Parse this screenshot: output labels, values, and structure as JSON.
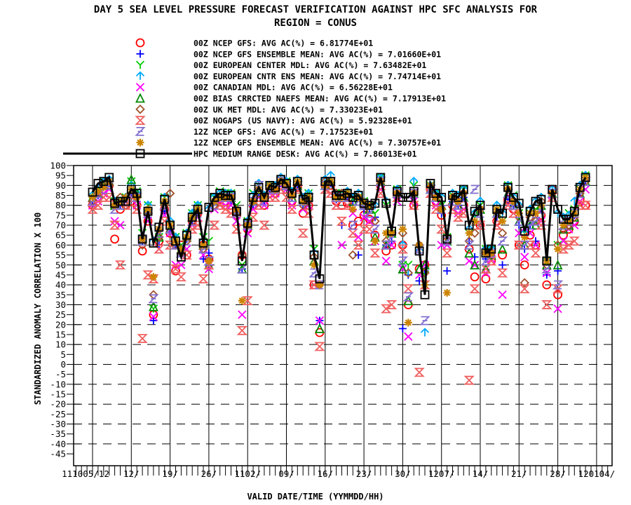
{
  "chart_data": {
    "type": "scatter",
    "title": "DAY 5 SEA LEVEL PRESSURE FORECAST VERIFICATION AGAINST HPC SFC ANALYSIS FOR",
    "subtitle": "REGION = CONUS",
    "xlabel": "VALID DATE/TIME (YYMMDD/HH)",
    "ylabel": "STANDARDIZED ANOMALY CORRELATION X 100",
    "x_units": "days since 2011-10-01",
    "xlim": [
      0.5,
      98
    ],
    "ylim": [
      -51,
      100
    ],
    "grid": true,
    "legend_position": "top",
    "x_start_day": 4,
    "yticks": [
      100,
      95,
      90,
      85,
      80,
      75,
      70,
      65,
      60,
      55,
      50,
      45,
      40,
      35,
      30,
      25,
      20,
      15,
      10,
      5,
      0,
      -5,
      -10,
      -15,
      -20,
      -25,
      -30,
      -35,
      -40,
      -45
    ],
    "xticks": [
      {
        "day": 4,
        "label": "111005/12"
      },
      {
        "day": 11,
        "label": "12/"
      },
      {
        "day": 18,
        "label": "19/"
      },
      {
        "day": 25,
        "label": "26/"
      },
      {
        "day": 32,
        "label": "1102/"
      },
      {
        "day": 39,
        "label": "09/"
      },
      {
        "day": 46,
        "label": "16/"
      },
      {
        "day": 53,
        "label": "23/"
      },
      {
        "day": 60,
        "label": "30/"
      },
      {
        "day": 67,
        "label": "1207/"
      },
      {
        "day": 74,
        "label": "14/"
      },
      {
        "day": 81,
        "label": "21/"
      },
      {
        "day": 88,
        "label": "28/"
      },
      {
        "day": 95,
        "label": "120104/"
      }
    ],
    "series": [
      {
        "name": "00Z NCEP GFS",
        "label": "00Z NCEP GFS: AVG AC(%) =  6.81774E+01",
        "marker": "circle",
        "color": "#ff0000",
        "values": [
          80,
          84,
          88,
          90,
          63,
          78,
          80,
          82,
          80,
          57,
          72,
          25,
          62,
          78,
          66,
          47,
          60,
          55,
          72,
          76,
          60,
          53,
          80,
          83,
          82,
          80,
          75,
          55,
          68,
          80,
          84,
          80,
          86,
          86,
          90,
          88,
          82,
          89,
          76,
          80,
          40,
          16,
          90,
          90,
          82,
          80,
          81,
          70,
          72,
          75,
          73,
          65,
          90,
          57,
          60,
          85,
          60,
          30,
          80,
          48,
          50,
          88,
          82,
          75,
          62,
          80,
          78,
          80,
          58,
          44,
          70,
          43,
          52,
          72,
          55,
          83,
          78,
          60,
          50,
          65,
          60,
          75,
          40,
          88,
          35,
          65,
          68,
          72,
          83,
          80
        ]
      },
      {
        "name": "00Z NCEP GFS ENSEMBLE MEAN",
        "label": "00Z NCEP GFS ENSEMBLE MEAN: AVG AC(%) =  7.01660E+01",
        "marker": "plus",
        "color": "#0000ff",
        "values": [
          82,
          85,
          90,
          91,
          80,
          80,
          83,
          86,
          84,
          62,
          76,
          22,
          60,
          77,
          68,
          60,
          55,
          63,
          72,
          76,
          53,
          56,
          82,
          84,
          84,
          82,
          76,
          48,
          70,
          80,
          86,
          82,
          88,
          88,
          91,
          90,
          84,
          90,
          80,
          82,
          50,
          22,
          90,
          91,
          83,
          70,
          84,
          80,
          55,
          78,
          78,
          74,
          92,
          60,
          62,
          86,
          18,
          45,
          84,
          42,
          47,
          88,
          84,
          76,
          47,
          82,
          80,
          84,
          62,
          54,
          78,
          53,
          55,
          74,
          50,
          83,
          80,
          70,
          58,
          70,
          62,
          78,
          45,
          86,
          47,
          70,
          72,
          75,
          86,
          92
        ]
      },
      {
        "name": "00Z EUROPEAN CENTER MDL",
        "label": "00Z EUROPEAN CENTER MDL: AVG AC(%) =  7.63482E+01",
        "marker": "y",
        "color": "#00cc00",
        "values": [
          84,
          88,
          92,
          92,
          82,
          82,
          84,
          92,
          87,
          66,
          80,
          28,
          64,
          84,
          70,
          64,
          60,
          66,
          76,
          80,
          64,
          62,
          84,
          87,
          86,
          86,
          80,
          50,
          72,
          86,
          90,
          85,
          90,
          90,
          93,
          92,
          88,
          92,
          84,
          86,
          58,
          40,
          91,
          92,
          86,
          86,
          86,
          84,
          84,
          82,
          80,
          76,
          94,
          80,
          66,
          88,
          50,
          50,
          90,
          58,
          45,
          90,
          86,
          80,
          64,
          85,
          84,
          88,
          66,
          74,
          80,
          58,
          58,
          78,
          72,
          90,
          85,
          76,
          66,
          76,
          78,
          80,
          52,
          87,
          60,
          74,
          76,
          78,
          88,
          95
        ]
      },
      {
        "name": "00Z EUROPEAN CNTR ENS MEAN",
        "label": "00Z EUROPEAN CNTR ENS MEAN: AVG AC(%) =  7.74714E+01",
        "marker": "arrow",
        "color": "#00aaff",
        "values": [
          85,
          89,
          92,
          93,
          82,
          82,
          84,
          90,
          86,
          64,
          80,
          62,
          67,
          84,
          72,
          64,
          58,
          66,
          76,
          80,
          62,
          78,
          84,
          86,
          86,
          86,
          78,
          55,
          72,
          85,
          91,
          85,
          90,
          90,
          94,
          92,
          87,
          93,
          84,
          86,
          56,
          40,
          93,
          95,
          86,
          86,
          87,
          84,
          86,
          82,
          80,
          80,
          94,
          82,
          66,
          88,
          60,
          46,
          92,
          57,
          16,
          90,
          86,
          84,
          64,
          86,
          85,
          88,
          68,
          76,
          82,
          58,
          58,
          80,
          76,
          90,
          84,
          80,
          66,
          78,
          82,
          84,
          52,
          88,
          76,
          74,
          75,
          82,
          90,
          95
        ]
      },
      {
        "name": "00Z CANADIAN MDL",
        "label": "00Z CANADIAN MDL: AVG AC(%) =  6.56228E+01",
        "marker": "x",
        "color": "#ff00ff",
        "values": [
          80,
          82,
          86,
          88,
          72,
          70,
          80,
          84,
          80,
          62,
          72,
          24,
          58,
          75,
          66,
          50,
          50,
          58,
          70,
          74,
          55,
          48,
          78,
          82,
          80,
          80,
          72,
          25,
          66,
          78,
          84,
          80,
          86,
          86,
          90,
          88,
          80,
          88,
          78,
          80,
          40,
          22,
          88,
          86,
          80,
          60,
          80,
          76,
          64,
          74,
          72,
          62,
          88,
          52,
          60,
          82,
          48,
          14,
          82,
          45,
          50,
          86,
          80,
          60,
          60,
          78,
          76,
          78,
          52,
          50,
          70,
          46,
          53,
          70,
          35,
          80,
          76,
          66,
          54,
          66,
          60,
          72,
          46,
          85,
          28,
          62,
          68,
          70,
          82,
          88
        ]
      },
      {
        "name": "00Z BIAS CRRCTED NAEFS MEAN",
        "label": "00Z BIAS CRRCTED NAEFS MEAN: AVG AC(%) =  7.17913E+01",
        "marker": "triangle",
        "color": "#008800",
        "values": [
          84,
          86,
          90,
          92,
          80,
          80,
          82,
          93,
          86,
          62,
          78,
          29,
          64,
          82,
          68,
          62,
          58,
          64,
          74,
          78,
          60,
          50,
          82,
          84,
          84,
          84,
          78,
          48,
          70,
          82,
          88,
          84,
          88,
          88,
          92,
          90,
          84,
          90,
          82,
          84,
          52,
          18,
          90,
          92,
          84,
          84,
          86,
          82,
          82,
          80,
          78,
          64,
          92,
          60,
          66,
          86,
          48,
          32,
          86,
          48,
          50,
          88,
          84,
          80,
          62,
          82,
          80,
          84,
          56,
          50,
          78,
          48,
          55,
          76,
          58,
          86,
          80,
          72,
          60,
          70,
          70,
          80,
          50,
          86,
          50,
          68,
          70,
          74,
          86,
          92
        ]
      },
      {
        "name": "00Z UK MET MDL",
        "label": "00Z UK MET MDL: AVG AC(%) =  7.33023E+01",
        "marker": "diamond",
        "color": "#a0522d",
        "values": [
          82,
          86,
          90,
          90,
          80,
          84,
          80,
          86,
          84,
          60,
          76,
          35,
          64,
          80,
          86,
          60,
          56,
          62,
          72,
          76,
          58,
          52,
          80,
          84,
          84,
          84,
          76,
          55,
          70,
          82,
          86,
          84,
          88,
          88,
          92,
          90,
          85,
          90,
          80,
          82,
          54,
          40,
          92,
          90,
          86,
          86,
          84,
          55,
          84,
          80,
          78,
          72,
          92,
          62,
          66,
          86,
          66,
          46,
          86,
          60,
          46,
          88,
          84,
          78,
          64,
          84,
          82,
          86,
          62,
          66,
          78,
          56,
          56,
          76,
          66,
          88,
          82,
          74,
          41,
          74,
          72,
          82,
          50,
          86,
          60,
          68,
          70,
          74,
          86,
          92
        ]
      },
      {
        "name": "00Z NOGAPS (US NAVY)",
        "label": "00Z NOGAPS (US NAVY): AVG AC(%) =  5.92328E+01",
        "marker": "hourglass",
        "color": "#f06060",
        "values": [
          78,
          80,
          84,
          84,
          70,
          50,
          80,
          84,
          78,
          13,
          45,
          43,
          58,
          72,
          60,
          48,
          44,
          55,
          68,
          70,
          43,
          50,
          70,
          80,
          78,
          76,
          68,
          17,
          32,
          74,
          80,
          70,
          84,
          84,
          88,
          84,
          78,
          88,
          66,
          76,
          40,
          9,
          88,
          86,
          80,
          72,
          80,
          66,
          60,
          68,
          68,
          56,
          86,
          28,
          30,
          84,
          58,
          38,
          80,
          -4,
          40,
          86,
          78,
          68,
          56,
          78,
          74,
          76,
          -8,
          38,
          70,
          48,
          52,
          70,
          46,
          80,
          76,
          60,
          38,
          60,
          56,
          70,
          30,
          84,
          38,
          58,
          60,
          62,
          80,
          80
        ]
      },
      {
        "name": "12Z NCEP GFS",
        "label": "12Z NCEP GFS: AVG AC(%) =  7.17523E+01",
        "marker": "z",
        "color": "#8470d0",
        "values": [
          82,
          86,
          88,
          90,
          78,
          80,
          82,
          86,
          84,
          62,
          76,
          33,
          66,
          80,
          68,
          60,
          56,
          62,
          72,
          76,
          58,
          52,
          80,
          84,
          84,
          84,
          76,
          48,
          70,
          82,
          90,
          82,
          88,
          88,
          92,
          90,
          84,
          90,
          82,
          84,
          46,
          40,
          90,
          92,
          84,
          84,
          84,
          70,
          82,
          80,
          76,
          68,
          92,
          60,
          64,
          86,
          52,
          34,
          86,
          58,
          22,
          88,
          84,
          78,
          62,
          82,
          80,
          84,
          60,
          88,
          76,
          52,
          56,
          76,
          62,
          86,
          80,
          72,
          60,
          70,
          72,
          78,
          48,
          86,
          40,
          70,
          72,
          76,
          86,
          92
        ]
      },
      {
        "name": "12Z NCEP GFS ENSEMBLE MEAN",
        "label": "12Z NCEP GFS ENSEMBLE MEAN: AVG AC(%) =  7.30757E+01",
        "marker": "asterisk",
        "color": "#cc8400",
        "values": [
          84,
          87,
          89,
          92,
          80,
          82,
          84,
          88,
          84,
          63,
          78,
          44,
          68,
          82,
          70,
          62,
          58,
          64,
          74,
          78,
          60,
          52,
          82,
          84,
          84,
          84,
          78,
          32,
          70,
          82,
          88,
          84,
          90,
          88,
          92,
          91,
          85,
          92,
          82,
          84,
          50,
          40,
          90,
          92,
          84,
          84,
          86,
          78,
          84,
          82,
          80,
          62,
          92,
          66,
          66,
          86,
          68,
          21,
          86,
          60,
          40,
          90,
          84,
          78,
          36,
          84,
          82,
          86,
          66,
          72,
          78,
          56,
          56,
          78,
          72,
          88,
          82,
          76,
          64,
          76,
          76,
          80,
          52,
          86,
          58,
          70,
          72,
          76,
          88,
          94
        ]
      },
      {
        "name": "HPC MEDIUM RANGE DESK",
        "label": "HPC MEDIUM RANGE DESK: AVG AC(%) =  7.86013E+01",
        "marker": "square",
        "color": "#000000",
        "line": true,
        "values": [
          86.6,
          91,
          92,
          94,
          81,
          82,
          82,
          88,
          86,
          63,
          77,
          61,
          69,
          83,
          70,
          62,
          54,
          65,
          74,
          78,
          61,
          79,
          84,
          86,
          85,
          85,
          77,
          52,
          71,
          84,
          89,
          84,
          90,
          89,
          93,
          91,
          86,
          92,
          83,
          84,
          55,
          43,
          92,
          92,
          85,
          85,
          86,
          84,
          85,
          81,
          80,
          81,
          94,
          81,
          67,
          87,
          84,
          84,
          87,
          57,
          35,
          91,
          86,
          84,
          63,
          85,
          84,
          88,
          70,
          77,
          80,
          56,
          58,
          78,
          76,
          89,
          84,
          81,
          67,
          77,
          82,
          83,
          52,
          88,
          78,
          73,
          73,
          77,
          89,
          94
        ]
      }
    ]
  }
}
